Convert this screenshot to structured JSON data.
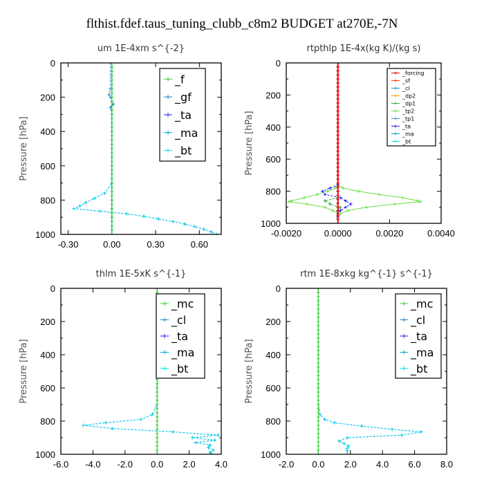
{
  "figure": {
    "title": "flthist.fdef.taus_tuning_clubb_c8m2  BUDGET at270E,-7N"
  },
  "colors": {
    "_f": "#33cc33",
    "_gf": "#1e88c8",
    "_ta": "#1a1aff",
    "_ma": "#00a0d0",
    "_bt": "#00e6e6",
    "_mc": "#33cc33",
    "_cl": "#1e88c8",
    "_forcing": "#e60000",
    "_sf": "#ff3300",
    "_dp2": "#ffa000",
    "_dp1": "#33aa33",
    "_tp2": "#66dd44",
    "_tp1": "#3a8fc0"
  },
  "chart_data": [
    {
      "type": "line",
      "title": "um    1E-4xm  s^{-2}",
      "ylabel": "Pressure  [hPa]",
      "xlim": [
        -0.35,
        0.75
      ],
      "ylim": [
        1000,
        0
      ],
      "xticks": [
        -0.3,
        0.0,
        0.3,
        0.6
      ],
      "xtick_labels": [
        "-0.30",
        "0.00",
        "0.30",
        "0.60"
      ],
      "yticks": [
        0,
        200,
        400,
        600,
        800,
        1000
      ],
      "ytick_labels": [
        "0",
        "200",
        "400",
        "600",
        "800",
        "1000"
      ],
      "legend_style": "big",
      "legend": [
        "_f",
        "_gf",
        "_ta",
        "_ma",
        "_bt"
      ],
      "series": [
        {
          "name": "_f",
          "dashed": false,
          "y": [
            0,
            1000
          ],
          "x": [
            0,
            0
          ]
        },
        {
          "name": "_gf",
          "dashed": true,
          "y": [
            0,
            150,
            185,
            200,
            225,
            240,
            260,
            300,
            400,
            700,
            800,
            850,
            900,
            950,
            1000
          ],
          "x": [
            -0.01,
            -0.01,
            -0.02,
            -0.01,
            0.0,
            0.01,
            -0.01,
            0.0,
            0.0,
            0.0,
            0.0,
            0.0,
            0.0,
            0.0,
            0.0
          ]
        },
        {
          "name": "_ta",
          "dashed": true,
          "y": [
            0,
            700,
            760,
            790,
            815,
            835,
            850,
            865,
            880,
            895,
            910,
            925,
            940,
            955,
            970,
            985,
            1000
          ],
          "x": [
            0,
            0,
            -0.05,
            -0.12,
            -0.18,
            -0.22,
            -0.26,
            -0.08,
            0.1,
            0.22,
            0.32,
            0.42,
            0.5,
            0.57,
            0.63,
            0.68,
            0.72
          ]
        },
        {
          "name": "_ma",
          "dashed": false,
          "y": [
            0,
            1000
          ],
          "x": [
            0,
            0
          ]
        },
        {
          "name": "_bt",
          "dashed": true,
          "y": [
            0,
            700,
            760,
            790,
            815,
            835,
            850,
            865,
            880,
            895,
            910,
            925,
            940,
            955,
            970,
            985,
            1000
          ],
          "x": [
            0,
            0,
            -0.05,
            -0.12,
            -0.18,
            -0.22,
            -0.26,
            -0.08,
            0.1,
            0.22,
            0.32,
            0.42,
            0.5,
            0.57,
            0.63,
            0.68,
            0.72
          ]
        },
        {
          "name": "_f",
          "dashed": false,
          "y": [
            0,
            25,
            50,
            75,
            100,
            125,
            150,
            175,
            200,
            225,
            250,
            275,
            300,
            325,
            350,
            375,
            400,
            425,
            450,
            475,
            500,
            525,
            550,
            575,
            600,
            625,
            650,
            675,
            700,
            725,
            750,
            775,
            800,
            825,
            850,
            875,
            900,
            925,
            950,
            975,
            1000
          ],
          "x": [
            0,
            0,
            0,
            0,
            0,
            0,
            0,
            0,
            0,
            0,
            0,
            0,
            0,
            0,
            0,
            0,
            0,
            0,
            0,
            0,
            0,
            0,
            0,
            0,
            0,
            0,
            0,
            0,
            0,
            0,
            0,
            0,
            0,
            0,
            0,
            0,
            0,
            0,
            0,
            0,
            0
          ]
        }
      ]
    },
    {
      "type": "line",
      "title": "rtpthlp    1E-4x(kg K)/(kg s)",
      "ylabel": "Pressure  [hPa]",
      "xlim": [
        -0.002,
        0.004
      ],
      "ylim": [
        1000,
        0
      ],
      "xticks": [
        -0.002,
        0.0,
        0.002,
        0.004
      ],
      "xtick_labels": [
        "-0.0020",
        "0.0000",
        "0.0020",
        "0.0040"
      ],
      "yticks": [
        0,
        200,
        400,
        600,
        800,
        1000
      ],
      "ytick_labels": [
        "0",
        "200",
        "400",
        "600",
        "800",
        "1000"
      ],
      "legend_style": "small",
      "legend": [
        "_forcing",
        "_sf",
        "_cl",
        "_dp2",
        "_dp1",
        "_tp2",
        "_tp1",
        "_ta",
        "_ma",
        "_bt"
      ],
      "series": [
        {
          "name": "_tp2",
          "dashed": false,
          "y": [
            0,
            760,
            780,
            800,
            820,
            840,
            860,
            865,
            880,
            900,
            920,
            940,
            960,
            1000
          ],
          "x": [
            0,
            0,
            -0.0001,
            -0.0004,
            -0.0008,
            -0.0013,
            -0.0018,
            -0.0019,
            -0.0012,
            -0.0005,
            -0.0002,
            0,
            0,
            0
          ]
        },
        {
          "name": "_tp2",
          "dashed": false,
          "y": [
            0,
            760,
            780,
            800,
            820,
            840,
            860,
            865,
            880,
            900,
            920,
            940,
            960,
            1000
          ],
          "x": [
            0,
            0,
            0.0002,
            0.0008,
            0.0016,
            0.0025,
            0.0031,
            0.0032,
            0.0022,
            0.0011,
            0.0004,
            0.0001,
            0,
            0
          ]
        },
        {
          "name": "_ta",
          "dashed": true,
          "y": [
            0,
            760,
            780,
            800,
            820,
            840,
            860,
            880,
            900,
            920,
            940,
            960,
            1000
          ],
          "x": [
            0,
            0,
            -0.0003,
            -0.0006,
            -0.0005,
            0.0001,
            0.0003,
            0.0005,
            0.0003,
            0.0001,
            0,
            0,
            0
          ]
        },
        {
          "name": "_dp1",
          "dashed": true,
          "y": [
            0,
            840,
            860,
            880,
            900,
            920,
            1000
          ],
          "x": [
            0,
            0,
            -0.0005,
            -0.0003,
            0.0001,
            0,
            0
          ]
        },
        {
          "name": "_forcing",
          "dashed": false,
          "y": [
            0,
            25,
            50,
            75,
            100,
            125,
            150,
            175,
            200,
            225,
            250,
            275,
            300,
            325,
            350,
            375,
            400,
            425,
            450,
            475,
            500,
            525,
            550,
            575,
            600,
            625,
            650,
            675,
            700,
            725,
            750,
            775,
            800,
            825,
            850,
            875,
            900,
            925,
            950,
            975,
            1000
          ],
          "x": [
            0,
            0,
            0,
            0,
            0,
            0,
            0,
            0,
            0,
            0,
            0,
            0,
            0,
            0,
            0,
            0,
            0,
            0,
            0,
            0,
            0,
            0,
            0,
            0,
            0,
            0,
            0,
            0,
            0,
            0,
            0,
            0,
            0,
            0,
            0,
            0,
            0,
            0,
            0,
            0,
            0
          ]
        }
      ]
    },
    {
      "type": "line",
      "title": "thlm    1E-5xK  s^{-1}",
      "ylabel": "Pressure  [hPa]",
      "xlim": [
        -6.0,
        4.0
      ],
      "ylim": [
        1000,
        0
      ],
      "xticks": [
        -6,
        -4,
        -2,
        0,
        2,
        4
      ],
      "xtick_labels": [
        "-6.0",
        "-4.0",
        "-2.0",
        "0.0",
        "2.0",
        "4.0"
      ],
      "yticks": [
        0,
        200,
        400,
        600,
        800,
        1000
      ],
      "ytick_labels": [
        "0",
        "200",
        "400",
        "600",
        "800",
        "1000"
      ],
      "legend_style": "big",
      "legend": [
        "_mc",
        "_cl",
        "_ta",
        "_ma",
        "_bt"
      ],
      "series": [
        {
          "name": "_ta",
          "dashed": true,
          "y": [
            0,
            700,
            760,
            790,
            810,
            825,
            845,
            865,
            885,
            900,
            915,
            930,
            945,
            960,
            975,
            990,
            1000
          ],
          "x": [
            0,
            0,
            -0.3,
            -1.0,
            -3.2,
            -4.6,
            -2.8,
            1.0,
            3.8,
            2.2,
            3.6,
            2.4,
            3.3,
            3.2,
            3.5,
            3.3,
            3.4
          ]
        },
        {
          "name": "_bt",
          "dashed": true,
          "y": [
            0,
            700,
            760,
            790,
            810,
            825,
            845,
            865,
            885,
            900,
            915,
            930,
            945,
            960,
            975,
            990,
            1000
          ],
          "x": [
            0,
            0,
            -0.3,
            -1.0,
            -3.2,
            -4.6,
            -2.8,
            1.0,
            3.8,
            2.2,
            3.6,
            2.4,
            3.3,
            3.2,
            3.5,
            3.3,
            3.4
          ]
        },
        {
          "name": "_mc",
          "dashed": false,
          "y": [
            0,
            25,
            50,
            75,
            100,
            125,
            150,
            175,
            200,
            225,
            250,
            275,
            300,
            325,
            350,
            375,
            400,
            425,
            450,
            475,
            500,
            525,
            550,
            575,
            600,
            625,
            650,
            675,
            700,
            725,
            750,
            775,
            800,
            825,
            850,
            875,
            900,
            925,
            950,
            975,
            1000
          ],
          "x": [
            0,
            0,
            0,
            0,
            0,
            0,
            0,
            0,
            0,
            0,
            0,
            0,
            0,
            0,
            0,
            0,
            0,
            0,
            0,
            0,
            0,
            0,
            0,
            0,
            0,
            0,
            0,
            0,
            0,
            0,
            0,
            0,
            0,
            0,
            0,
            0,
            0,
            0,
            0,
            0,
            0
          ]
        }
      ]
    },
    {
      "type": "line",
      "title": "rtm    1E-8xkg  kg^{-1}  s^{-1}",
      "ylabel": "Pressure  [hPa]",
      "xlim": [
        -2.0,
        8.0
      ],
      "ylim": [
        1000,
        0
      ],
      "xticks": [
        -2,
        0,
        2,
        4,
        6,
        8
      ],
      "xtick_labels": [
        "-2.0",
        "0.0",
        "2.0",
        "4.0",
        "6.0",
        "8.0"
      ],
      "yticks": [
        0,
        200,
        400,
        600,
        800,
        1000
      ],
      "ytick_labels": [
        "0",
        "200",
        "400",
        "600",
        "800",
        "1000"
      ],
      "legend_style": "big",
      "legend": [
        "_mc",
        "_cl",
        "_ta",
        "_ma",
        "_bt"
      ],
      "series": [
        {
          "name": "_ta",
          "dashed": true,
          "y": [
            0,
            700,
            760,
            790,
            810,
            830,
            850,
            865,
            885,
            900,
            920,
            935,
            950,
            965,
            980,
            1000
          ],
          "x": [
            0,
            0,
            0.1,
            0.4,
            1.0,
            2.7,
            4.6,
            6.4,
            5.2,
            1.8,
            1.3,
            1.6,
            1.9,
            1.8,
            1.8,
            1.8
          ]
        },
        {
          "name": "_bt",
          "dashed": true,
          "y": [
            0,
            700,
            760,
            790,
            810,
            830,
            850,
            865,
            885,
            900,
            920,
            935,
            950,
            965,
            980,
            1000
          ],
          "x": [
            0,
            0,
            0.1,
            0.4,
            1.0,
            2.7,
            4.6,
            6.4,
            5.2,
            1.8,
            1.3,
            1.6,
            1.9,
            1.8,
            1.8,
            1.8
          ]
        },
        {
          "name": "_mc",
          "dashed": false,
          "y": [
            0,
            25,
            50,
            75,
            100,
            125,
            150,
            175,
            200,
            225,
            250,
            275,
            300,
            325,
            350,
            375,
            400,
            425,
            450,
            475,
            500,
            525,
            550,
            575,
            600,
            625,
            650,
            675,
            700,
            725,
            750,
            775,
            800,
            825,
            850,
            875,
            900,
            925,
            950,
            975,
            1000
          ],
          "x": [
            0,
            0,
            0,
            0,
            0,
            0,
            0,
            0,
            0,
            0,
            0,
            0,
            0,
            0,
            0,
            0,
            0,
            0,
            0,
            0,
            0,
            0,
            0,
            0,
            0,
            0,
            0,
            0,
            0,
            0,
            0,
            0,
            0,
            0,
            0,
            0,
            0,
            0,
            0,
            0,
            0
          ]
        }
      ]
    }
  ]
}
